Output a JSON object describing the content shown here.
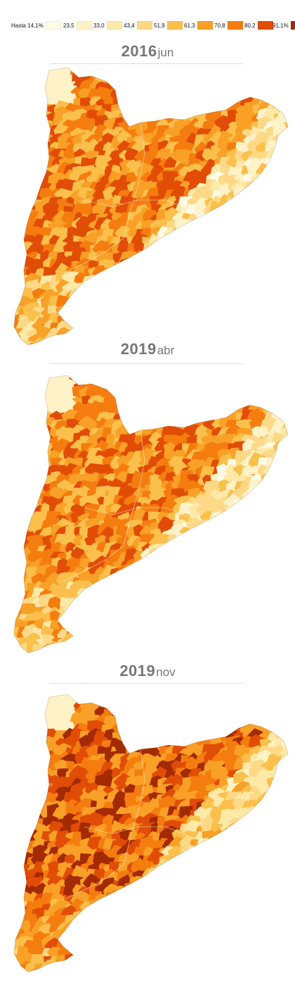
{
  "legend": {
    "items": [
      {
        "label": "Hasta 14,1%",
        "color": "#fffbe6"
      },
      {
        "label": "23,5",
        "color": "#fff2c7"
      },
      {
        "label": "33,0",
        "color": "#fee9a8"
      },
      {
        "label": "43,4",
        "color": "#fdd987"
      },
      {
        "label": "51,9",
        "color": "#fbbf4b"
      },
      {
        "label": "61,3",
        "color": "#f9a027"
      },
      {
        "label": "70,8",
        "color": "#f57d0f"
      },
      {
        "label": "80,2",
        "color": "#e14d06"
      },
      {
        "label": "91,1%",
        "color": "#a42a04"
      }
    ]
  },
  "panels": [
    {
      "year": "2016",
      "month": "jun"
    },
    {
      "year": "2019",
      "month": "abr"
    },
    {
      "year": "2019",
      "month": "nov"
    }
  ]
}
